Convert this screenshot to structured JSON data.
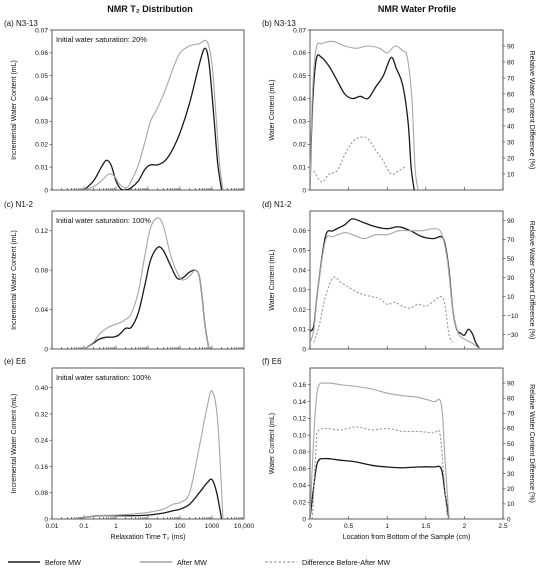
{
  "columns": {
    "left_title": "NMR T₂ Distribution",
    "right_title": "NMR Water Profile"
  },
  "legend": {
    "before": "Before MW",
    "after": "After MW",
    "difference": "Difference Before-After MW"
  },
  "colors": {
    "before": "#1a1a1a",
    "after": "#a6a6a6",
    "difference": "#9a9a9a"
  },
  "chart_data": [
    {
      "id": "a",
      "type": "line",
      "label": "(a) N3-13",
      "annotation": "Initial water saturation: 20%",
      "xlabel": "",
      "ylabel": "Incremental Water Content (mL)",
      "xscale": "log",
      "xlim": [
        0.01,
        10000
      ],
      "ylim": [
        0,
        0.07
      ],
      "xticks": [],
      "yticks": [
        0,
        0.01,
        0.02,
        0.03,
        0.04,
        0.05,
        0.06,
        0.07
      ],
      "ytick_labels": [
        "0",
        "0.01",
        "0.02",
        "0.03",
        "0.04",
        "0.05",
        "0.06",
        "0.07"
      ],
      "series": [
        {
          "key": "before",
          "x": [
            0.1,
            0.2,
            0.35,
            0.5,
            0.7,
            1,
            1.4,
            2,
            3,
            5,
            8,
            12,
            20,
            35,
            60,
            100,
            200,
            400,
            600,
            800,
            1100,
            1500,
            2000
          ],
          "y": [
            0,
            0.004,
            0.01,
            0.013,
            0.011,
            0.004,
            0.0005,
            0,
            0.001,
            0.004,
            0.009,
            0.011,
            0.011,
            0.013,
            0.018,
            0.025,
            0.038,
            0.055,
            0.062,
            0.056,
            0.035,
            0.012,
            0
          ]
        },
        {
          "key": "after",
          "x": [
            0.1,
            0.2,
            0.35,
            0.6,
            0.9,
            1.2,
            1.6,
            2.2,
            3,
            5,
            8,
            12,
            20,
            35,
            60,
            100,
            200,
            400,
            700,
            1000,
            1300,
            1700,
            2200
          ],
          "y": [
            0,
            0.0015,
            0.004,
            0.007,
            0.006,
            0.003,
            0.0015,
            0.001,
            0.004,
            0.011,
            0.021,
            0.03,
            0.036,
            0.044,
            0.053,
            0.06,
            0.063,
            0.064,
            0.065,
            0.055,
            0.035,
            0.012,
            0
          ]
        }
      ]
    },
    {
      "id": "b",
      "type": "line",
      "label": "(b) N3-13",
      "xlabel": "",
      "ylabel": "Water Content (mL)",
      "y2label": "Relative Water Content Difference (%)",
      "xlim": [
        0,
        2.5
      ],
      "ylim": [
        0,
        0.07
      ],
      "y2lim": [
        0,
        100
      ],
      "xticks": [],
      "yticks": [
        0,
        0.01,
        0.02,
        0.03,
        0.04,
        0.05,
        0.06,
        0.07
      ],
      "ytick_labels": [
        "0",
        "0.01",
        "0.02",
        "0.03",
        "0.04",
        "0.05",
        "0.06",
        "0.07"
      ],
      "y2ticks": [
        10,
        20,
        30,
        40,
        50,
        60,
        70,
        80,
        90
      ],
      "series": [
        {
          "key": "before",
          "axis": "y",
          "x": [
            0,
            0.03,
            0.08,
            0.15,
            0.25,
            0.35,
            0.45,
            0.55,
            0.65,
            0.75,
            0.85,
            0.95,
            1.05,
            1.12,
            1.2,
            1.27,
            1.31,
            1.35
          ],
          "y": [
            0,
            0.035,
            0.057,
            0.058,
            0.054,
            0.048,
            0.042,
            0.04,
            0.041,
            0.04,
            0.045,
            0.05,
            0.058,
            0.053,
            0.046,
            0.03,
            0.01,
            0
          ]
        },
        {
          "key": "after",
          "axis": "y",
          "x": [
            0,
            0.03,
            0.08,
            0.15,
            0.3,
            0.45,
            0.6,
            0.75,
            0.9,
            1.0,
            1.1,
            1.2,
            1.26,
            1.32,
            1.36,
            1.4
          ],
          "y": [
            0,
            0.04,
            0.062,
            0.064,
            0.065,
            0.063,
            0.062,
            0.063,
            0.062,
            0.06,
            0.063,
            0.061,
            0.058,
            0.04,
            0.01,
            0
          ]
        },
        {
          "key": "difference",
          "axis": "y2",
          "x": [
            0.05,
            0.15,
            0.25,
            0.35,
            0.45,
            0.55,
            0.65,
            0.75,
            0.85,
            0.95,
            1.05,
            1.15,
            1.25
          ],
          "y": [
            12,
            5,
            10,
            12,
            22,
            30,
            33,
            32,
            25,
            18,
            10,
            12,
            15
          ]
        }
      ]
    },
    {
      "id": "c",
      "type": "line",
      "label": "(c) N1-2",
      "annotation": "Initial water saturation: 100%",
      "xlabel": "",
      "ylabel": "Incremental Water Content (mL)",
      "xscale": "log",
      "xlim": [
        0.01,
        10000
      ],
      "ylim": [
        0,
        0.14
      ],
      "xticks": [],
      "yticks": [
        0,
        0.04,
        0.08,
        0.12
      ],
      "ytick_labels": [
        "0",
        "0.04",
        "0.08",
        "0.12"
      ],
      "series": [
        {
          "key": "before",
          "x": [
            0.1,
            0.2,
            0.3,
            0.5,
            0.8,
            1.2,
            2,
            3,
            5,
            8,
            12,
            20,
            30,
            50,
            80,
            120,
            200,
            300,
            400,
            500,
            600,
            800
          ],
          "y": [
            0,
            0.006,
            0.01,
            0.012,
            0.012,
            0.014,
            0.021,
            0.022,
            0.037,
            0.065,
            0.09,
            0.103,
            0.1,
            0.085,
            0.072,
            0.072,
            0.078,
            0.08,
            0.074,
            0.05,
            0.025,
            0
          ]
        },
        {
          "key": "after",
          "x": [
            0.1,
            0.2,
            0.3,
            0.5,
            0.8,
            1.2,
            2,
            3,
            5,
            8,
            12,
            20,
            30,
            50,
            80,
            120,
            200,
            300,
            400,
            500,
            600,
            800
          ],
          "y": [
            0,
            0.007,
            0.015,
            0.021,
            0.024,
            0.026,
            0.03,
            0.036,
            0.058,
            0.095,
            0.123,
            0.133,
            0.125,
            0.096,
            0.078,
            0.07,
            0.074,
            0.08,
            0.074,
            0.05,
            0.025,
            0
          ]
        }
      ]
    },
    {
      "id": "d",
      "type": "line",
      "label": "(d) N1-2",
      "xlabel": "",
      "ylabel": "Water Content (mL)",
      "y2label": "Relative Water Content Difference (%)",
      "xlim": [
        0,
        2.5
      ],
      "ylim": [
        0,
        0.07
      ],
      "y2lim": [
        -45,
        100
      ],
      "xticks": [],
      "yticks": [
        0,
        0.01,
        0.02,
        0.03,
        0.04,
        0.05,
        0.06
      ],
      "ytick_labels": [
        "0",
        "0.01",
        "0.02",
        "0.03",
        "0.04",
        "0.05",
        "0.06"
      ],
      "y2ticks": [
        -30,
        -10,
        10,
        30,
        50,
        70,
        90
      ],
      "y2tick_labels": [
        "−30",
        "−10",
        "10",
        "30",
        "50",
        "70",
        "90"
      ],
      "series": [
        {
          "key": "before",
          "axis": "y",
          "x": [
            0,
            0.05,
            0.1,
            0.2,
            0.3,
            0.45,
            0.55,
            0.7,
            0.85,
            1.0,
            1.15,
            1.3,
            1.45,
            1.6,
            1.7,
            1.75,
            1.8,
            1.85,
            1.9,
            1.95,
            2.0,
            2.05,
            2.1,
            2.15,
            2.2
          ],
          "y": [
            0.009,
            0.012,
            0.03,
            0.057,
            0.06,
            0.063,
            0.066,
            0.064,
            0.062,
            0.061,
            0.062,
            0.06,
            0.057,
            0.056,
            0.057,
            0.053,
            0.04,
            0.02,
            0.01,
            0.008,
            0.007,
            0.01,
            0.008,
            0.003,
            0
          ]
        },
        {
          "key": "after",
          "axis": "y",
          "x": [
            0,
            0.05,
            0.1,
            0.2,
            0.3,
            0.45,
            0.55,
            0.7,
            0.85,
            1.0,
            1.15,
            1.3,
            1.45,
            1.6,
            1.7,
            1.78,
            1.85,
            1.92,
            2.0,
            2.1,
            2.2
          ],
          "y": [
            0.003,
            0.01,
            0.03,
            0.055,
            0.057,
            0.059,
            0.058,
            0.056,
            0.058,
            0.058,
            0.06,
            0.06,
            0.06,
            0.061,
            0.059,
            0.045,
            0.02,
            0.008,
            0.005,
            0.003,
            0
          ]
        },
        {
          "key": "difference",
          "axis": "y2",
          "x": [
            0.05,
            0.12,
            0.2,
            0.3,
            0.4,
            0.5,
            0.6,
            0.7,
            0.8,
            0.9,
            1.0,
            1.1,
            1.2,
            1.3,
            1.4,
            1.5,
            1.6,
            1.7,
            1.75,
            1.8,
            1.85
          ],
          "y": [
            -38,
            -20,
            10,
            30,
            25,
            20,
            15,
            12,
            10,
            8,
            2,
            4,
            0,
            -2,
            2,
            0,
            5,
            10,
            0,
            -30,
            -38
          ]
        }
      ]
    },
    {
      "id": "e",
      "type": "line",
      "label": "(e) E6",
      "annotation": "Initial water saturation: 100%",
      "xlabel": "Relaxation Time T₂ (ms)",
      "ylabel": "Incremental Water Content (mL)",
      "xscale": "log",
      "xlim": [
        0.01,
        10000
      ],
      "ylim": [
        0,
        0.46
      ],
      "xticks": [
        0.01,
        0.1,
        1,
        10,
        100,
        1000,
        10000
      ],
      "xtick_labels": [
        "0.01",
        "0.1",
        "1",
        "10",
        "100",
        "1000",
        "10,000"
      ],
      "yticks": [
        0,
        0.08,
        0.16,
        0.24,
        0.32,
        0.4
      ],
      "ytick_labels": [
        "0",
        "0.08",
        "0.16",
        "0.24",
        "0.32",
        "0.40"
      ],
      "series": [
        {
          "key": "before",
          "x": [
            0.05,
            0.1,
            0.3,
            1,
            3,
            10,
            30,
            60,
            100,
            200,
            400,
            700,
            1000,
            1400,
            2000
          ],
          "y": [
            0,
            0.005,
            0.01,
            0.01,
            0.01,
            0.012,
            0.018,
            0.025,
            0.03,
            0.045,
            0.08,
            0.11,
            0.12,
            0.08,
            0
          ]
        },
        {
          "key": "after",
          "x": [
            0.05,
            0.1,
            0.3,
            1,
            3,
            10,
            30,
            60,
            100,
            200,
            400,
            700,
            1000,
            1500,
            2200
          ],
          "y": [
            0,
            0.005,
            0.01,
            0.012,
            0.015,
            0.02,
            0.03,
            0.045,
            0.05,
            0.08,
            0.22,
            0.34,
            0.39,
            0.3,
            0
          ]
        }
      ]
    },
    {
      "id": "f",
      "type": "line",
      "label": "(f) E6",
      "xlabel": "Location from Bottom of the Sample (cm)",
      "ylabel": "Water Content (mL)",
      "y2label": "Relative Water Content Difference (%)",
      "xlim": [
        0,
        2.5
      ],
      "ylim": [
        0,
        0.18
      ],
      "y2lim": [
        0,
        100
      ],
      "xticks": [
        0,
        0.5,
        1,
        1.5,
        2,
        2.5
      ],
      "xtick_labels": [
        "0",
        "0.5",
        "1",
        "1.5",
        "2",
        "2.5"
      ],
      "yticks": [
        0,
        0.02,
        0.04,
        0.06,
        0.08,
        0.1,
        0.12,
        0.14,
        0.16
      ],
      "ytick_labels": [
        "0",
        "0.02",
        "0.04",
        "0.06",
        "0.08",
        "0.10",
        "0.12",
        "0.14",
        "0.16"
      ],
      "y2ticks": [
        0,
        10,
        20,
        30,
        40,
        50,
        60,
        70,
        80,
        90
      ],
      "series": [
        {
          "key": "before",
          "axis": "y",
          "x": [
            0,
            0.05,
            0.1,
            0.2,
            0.4,
            0.6,
            0.8,
            1.0,
            1.2,
            1.4,
            1.6,
            1.7,
            1.75,
            1.8
          ],
          "y": [
            0,
            0.04,
            0.068,
            0.072,
            0.07,
            0.068,
            0.064,
            0.062,
            0.061,
            0.062,
            0.062,
            0.06,
            0.03,
            0
          ]
        },
        {
          "key": "after",
          "axis": "y",
          "x": [
            0,
            0.05,
            0.1,
            0.2,
            0.4,
            0.6,
            0.8,
            1.0,
            1.2,
            1.4,
            1.6,
            1.7,
            1.75,
            1.8
          ],
          "y": [
            0,
            0.1,
            0.155,
            0.162,
            0.16,
            0.158,
            0.155,
            0.15,
            0.147,
            0.145,
            0.14,
            0.137,
            0.07,
            0
          ]
        },
        {
          "key": "difference",
          "axis": "y2",
          "x": [
            0.03,
            0.08,
            0.1,
            0.2,
            0.4,
            0.6,
            0.8,
            1.0,
            1.2,
            1.4,
            1.6,
            1.68,
            1.73,
            1.78
          ],
          "y": [
            0,
            50,
            58,
            60,
            59,
            61,
            59,
            60,
            58,
            58,
            57,
            57,
            30,
            0
          ]
        }
      ]
    }
  ]
}
